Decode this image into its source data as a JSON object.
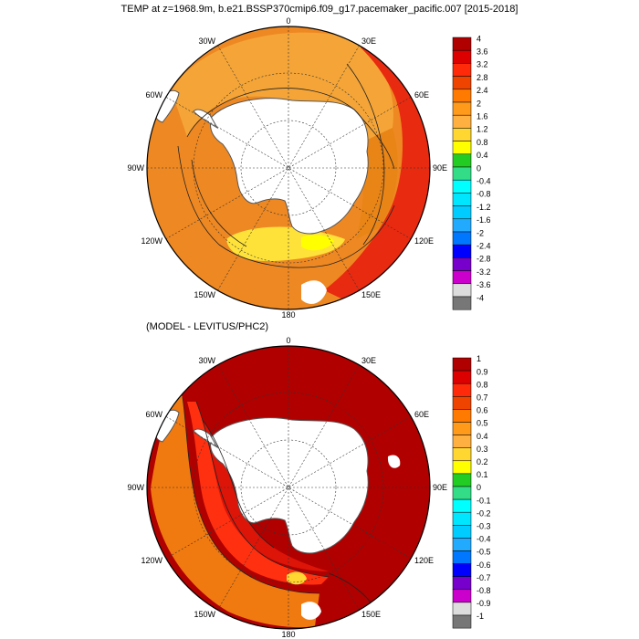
{
  "title": "TEMP at z=1968.9m, b.e21.BSSP370cmip6.f09_g17.pacemaker_pacific.007 [2015-2018]",
  "subtitle": "(MODEL - LEVITUS/PHC2)",
  "longitude_labels": [
    "0",
    "30E",
    "60E",
    "90E",
    "120E",
    "150E",
    "180",
    "150W",
    "120W",
    "90W",
    "60W",
    "30W"
  ],
  "colors": {
    "land_fill": "#ffffff",
    "coastline": "#555555",
    "grid_line": "#333333",
    "missing_value": "#ffffff",
    "colorbar_border": "#000000"
  },
  "panels": [
    {
      "name": "model-temperature",
      "field": "TEMP at z=1968.9m (model, 2015-2018)",
      "projection": "south polar stereographic",
      "colorbar": {
        "labels": [
          "4",
          "3.6",
          "3.2",
          "2.8",
          "2.4",
          "2",
          "1.6",
          "1.2",
          "0.8",
          "0.4",
          "0",
          "-0.4",
          "-0.8",
          "-1.2",
          "-1.6",
          "-2",
          "-2.4",
          "-2.8",
          "-3.2",
          "-3.6",
          "-4"
        ],
        "colors": [
          "#b00000",
          "#dd0000",
          "#ff2a0a",
          "#ee4400",
          "#ff7a00",
          "#ff9a1a",
          "#ffb040",
          "#ffd730",
          "#ffff00",
          "#22cc22",
          "#33dd88",
          "#00ffff",
          "#00e6ff",
          "#00ccff",
          "#22aaff",
          "#0077ff",
          "#0000ff",
          "#7700cc",
          "#cc00cc",
          "#dddddd",
          "#777777"
        ]
      },
      "regions": [
        {
          "name": "background",
          "color": "#ee8822"
        },
        {
          "name": "atlantic-sector",
          "color": "#f5a537"
        },
        {
          "name": "eastern-ocean-sector",
          "color": "#e98516"
        },
        {
          "name": "ross-sea",
          "color": "#fee23a"
        },
        {
          "name": "ross-sea-inner",
          "color": "#ffff00"
        },
        {
          "name": "east-warm-band",
          "color": "#e82a10"
        }
      ]
    },
    {
      "name": "model-minus-levitus",
      "field": "(MODEL - LEVITUS/PHC2)",
      "projection": "south polar stereographic",
      "colorbar": {
        "labels": [
          "1",
          "0.9",
          "0.8",
          "0.7",
          "0.6",
          "0.5",
          "0.4",
          "0.3",
          "0.2",
          "0.1",
          "0",
          "-0.1",
          "-0.2",
          "-0.3",
          "-0.4",
          "-0.5",
          "-0.6",
          "-0.7",
          "-0.8",
          "-0.9",
          "-1"
        ],
        "colors": [
          "#b00000",
          "#dd0000",
          "#ff2a0a",
          "#ee4400",
          "#ff7a00",
          "#ff9a1a",
          "#ffb040",
          "#ffd730",
          "#ffff00",
          "#22cc22",
          "#33dd88",
          "#00ffff",
          "#00e6ff",
          "#00ccff",
          "#22aaff",
          "#0077ff",
          "#0000ff",
          "#7700cc",
          "#cc00cc",
          "#dddddd",
          "#777777"
        ]
      },
      "regions": [
        {
          "name": "background",
          "color": "#b00000"
        },
        {
          "name": "west-gradient-outer",
          "color": "#f07a10"
        },
        {
          "name": "west-gradient-mid",
          "color": "#ff3010"
        },
        {
          "name": "west-gradient-inner",
          "color": "#dd1408"
        },
        {
          "name": "west-yellow-spot",
          "color": "#ffd730"
        }
      ]
    }
  ]
}
